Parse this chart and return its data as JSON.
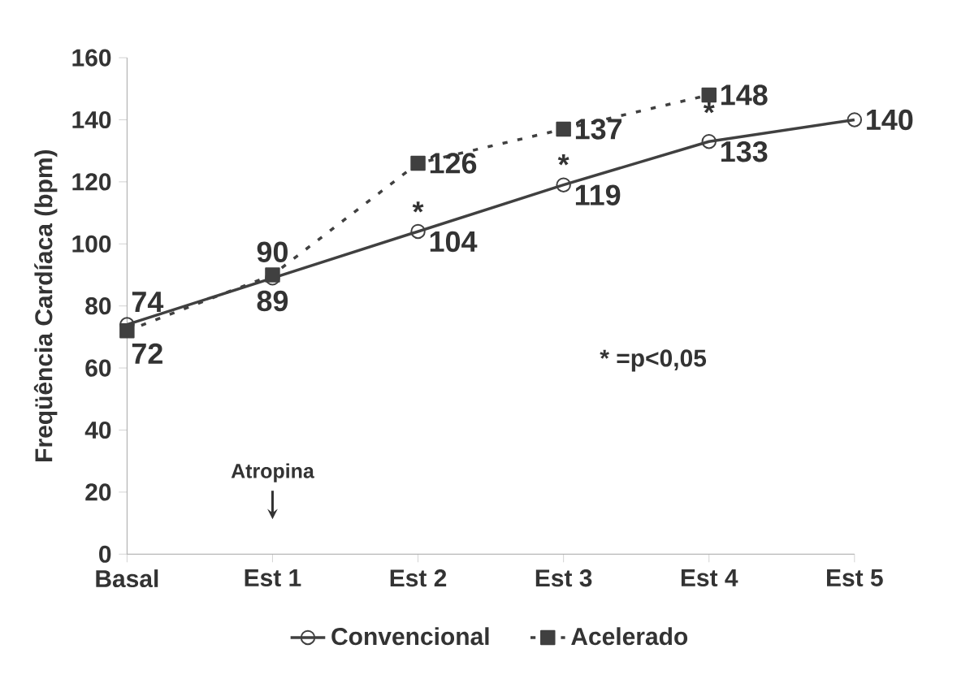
{
  "chart_data": {
    "type": "line",
    "ylabel": "Freqüência Cardíaca (bpm)",
    "categories": [
      "Basal",
      "Est 1",
      "Est 2",
      "Est 3",
      "Est 4",
      "Est 5"
    ],
    "series": [
      {
        "name": "Convencional",
        "color": "#404040",
        "values": [
          74,
          89,
          104,
          119,
          133,
          140
        ],
        "marker": "circle",
        "line_style": "solid"
      },
      {
        "name": "Acelerado",
        "color": "#404040",
        "values": [
          72,
          90,
          126,
          137,
          148,
          null
        ],
        "marker": "square",
        "line_style": "dotted"
      }
    ],
    "ylim": [
      0,
      160
    ],
    "yticks": [
      0,
      20,
      40,
      60,
      80,
      100,
      120,
      140,
      160
    ],
    "data_labels": true,
    "legend": "bottom",
    "grid": false,
    "annotations": [
      "*",
      "*",
      "*",
      "* =p<0,05",
      "Atropina"
    ]
  }
}
